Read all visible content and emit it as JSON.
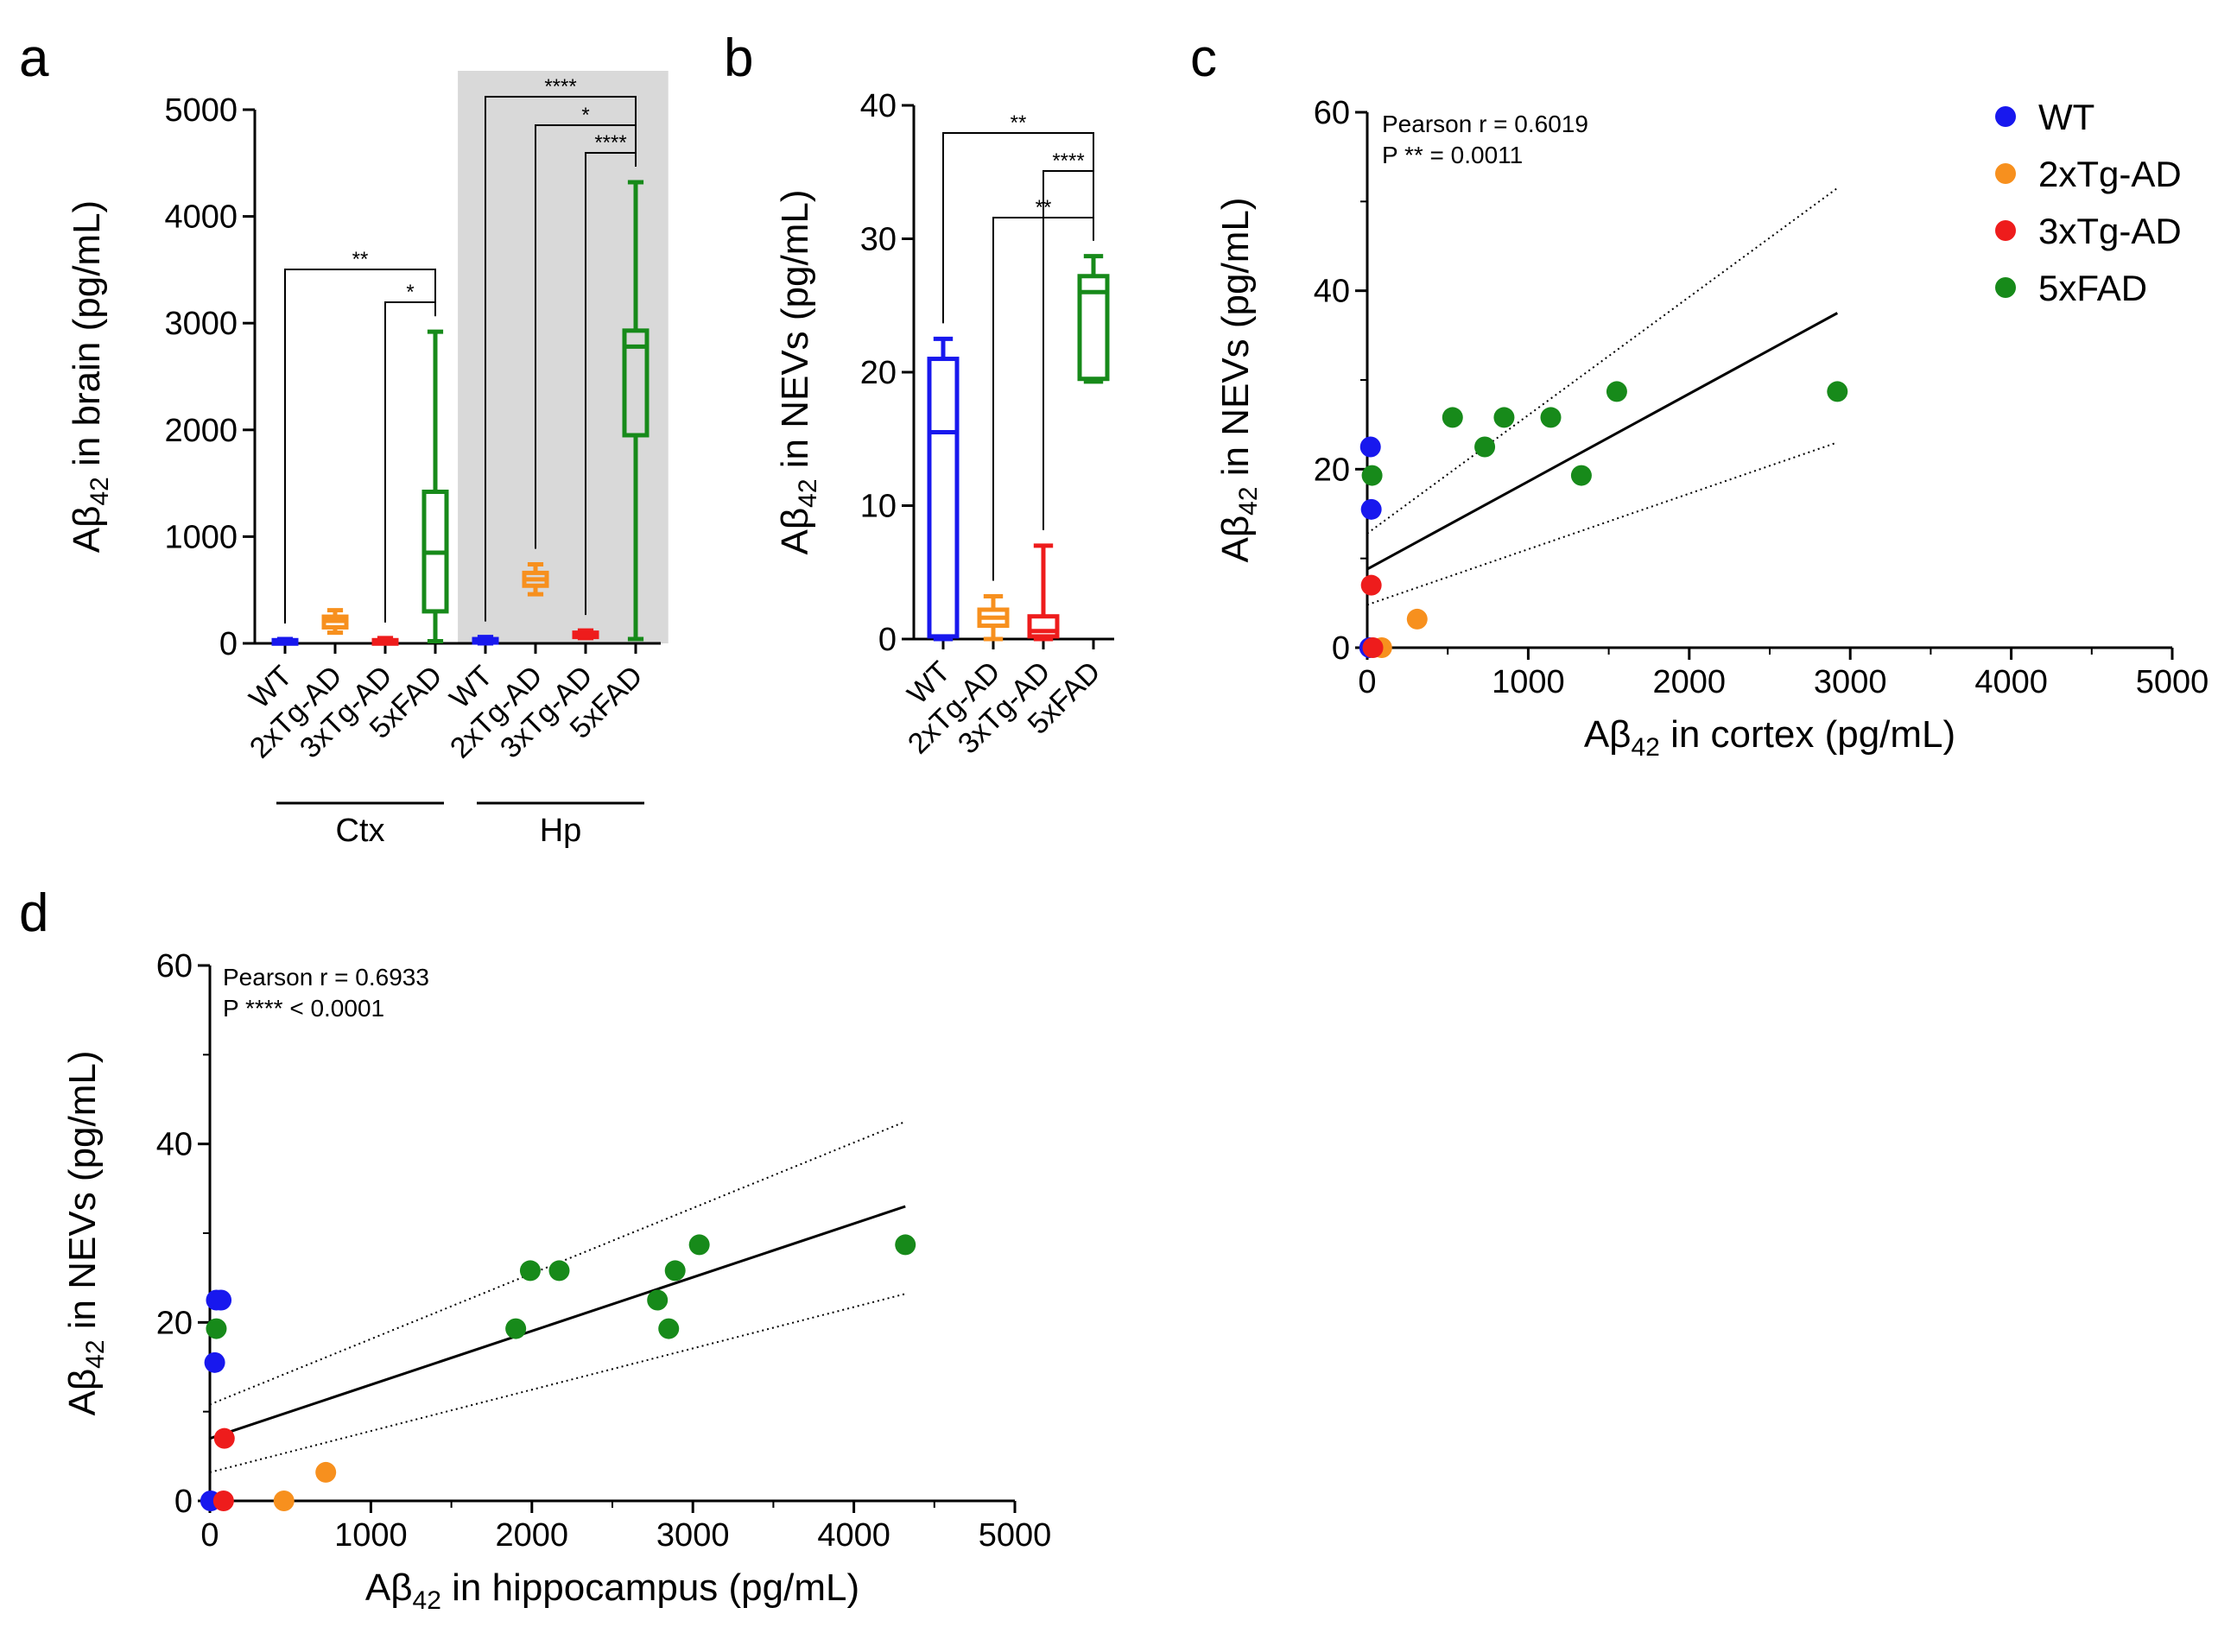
{
  "colors": {
    "WT": "#1818ee",
    "2xTg-AD": "#f7901e",
    "3xTg-AD": "#ee1c1c",
    "5xFAD": "#178a1a",
    "shade": "#d9d9d9"
  },
  "panel_labels": {
    "a": "a",
    "b": "b",
    "c": "c",
    "d": "d"
  },
  "legend": {
    "items": [
      "WT",
      "2xTg-AD",
      "3xTg-AD",
      "5xFAD"
    ]
  },
  "chart_data": [
    {
      "id": "a",
      "type": "box",
      "ylabel": "Aβ42 in brain (pg/mL)",
      "ylabel_parts": {
        "pre": "Aβ",
        "sub": "42",
        "post": " in brain (pg/mL)"
      },
      "ylim": [
        0,
        5000
      ],
      "yticks": [
        0,
        1000,
        2000,
        3000,
        4000,
        5000
      ],
      "categories": [
        "WT",
        "2xTg-AD",
        "3xTg-AD",
        "5xFAD",
        "WT",
        "2xTg-AD",
        "3xTg-AD",
        "5xFAD"
      ],
      "groups": [
        {
          "label": "Ctx",
          "range": [
            0,
            3
          ]
        },
        {
          "label": "Hp",
          "range": [
            4,
            7
          ],
          "shaded": true
        }
      ],
      "boxes": [
        {
          "group": "WT",
          "min": 0,
          "q1": 5,
          "median": 15,
          "q3": 30,
          "max": 40
        },
        {
          "group": "2xTg-AD",
          "min": 100,
          "q1": 150,
          "median": 210,
          "q3": 250,
          "max": 310
        },
        {
          "group": "3xTg-AD",
          "min": 0,
          "q1": 5,
          "median": 20,
          "q3": 30,
          "max": 50
        },
        {
          "group": "5xFAD",
          "min": 20,
          "q1": 300,
          "median": 850,
          "q3": 1420,
          "max": 2920
        },
        {
          "group": "WT",
          "min": 0,
          "q1": 10,
          "median": 20,
          "q3": 40,
          "max": 60
        },
        {
          "group": "2xTg-AD",
          "min": 460,
          "q1": 540,
          "median": 600,
          "q3": 660,
          "max": 740
        },
        {
          "group": "3xTg-AD",
          "min": 50,
          "q1": 60,
          "median": 80,
          "q3": 100,
          "max": 120
        },
        {
          "group": "5xFAD",
          "min": 40,
          "q1": 1950,
          "median": 2780,
          "q3": 2930,
          "max": 4320
        }
      ],
      "significance": [
        {
          "from": 0,
          "to": 3,
          "label": "**"
        },
        {
          "from": 2,
          "to": 3,
          "label": "*"
        },
        {
          "from": 4,
          "to": 7,
          "label": "****"
        },
        {
          "from": 5,
          "to": 7,
          "label": "*"
        },
        {
          "from": 6,
          "to": 7,
          "label": "****"
        }
      ]
    },
    {
      "id": "b",
      "type": "box",
      "ylabel": "Aβ42 in NEVs (pg/mL)",
      "ylabel_parts": {
        "pre": "Aβ",
        "sub": "42",
        "post": " in NEVs (pg/mL)"
      },
      "ylim": [
        0,
        40
      ],
      "yticks": [
        0,
        10,
        20,
        30,
        40
      ],
      "categories": [
        "WT",
        "2xTg-AD",
        "3xTg-AD",
        "5xFAD"
      ],
      "boxes": [
        {
          "group": "WT",
          "min": 0,
          "q1": 0.2,
          "median": 15.5,
          "q3": 21,
          "max": 22.5
        },
        {
          "group": "2xTg-AD",
          "min": 0,
          "q1": 1.0,
          "median": 1.6,
          "q3": 2.2,
          "max": 3.2
        },
        {
          "group": "3xTg-AD",
          "min": 0,
          "q1": 0.2,
          "median": 0.6,
          "q3": 1.7,
          "max": 7
        },
        {
          "group": "5xFAD",
          "min": 19.3,
          "q1": 19.5,
          "median": 26,
          "q3": 27.2,
          "max": 28.7
        }
      ],
      "significance": [
        {
          "from": 0,
          "to": 3,
          "label": "**"
        },
        {
          "from": 1,
          "to": 3,
          "label": "**"
        },
        {
          "from": 2,
          "to": 3,
          "label": "****"
        }
      ]
    },
    {
      "id": "c",
      "type": "scatter",
      "xlabel": "Aβ42 in cortex (pg/mL)",
      "xlabel_parts": {
        "pre": "Aβ",
        "sub": "42",
        "post": " in cortex (pg/mL)"
      },
      "ylabel": "Aβ42 in NEVs (pg/mL)",
      "ylabel_parts": {
        "pre": "Aβ",
        "sub": "42",
        "post": " in NEVs (pg/mL)"
      },
      "xlim": [
        0,
        5000
      ],
      "ylim": [
        0,
        60
      ],
      "xticks": [
        0,
        1000,
        2000,
        3000,
        4000,
        5000
      ],
      "yticks": [
        0,
        20,
        40,
        60
      ],
      "annotation": [
        "Pearson r = 0.6019",
        "P ** = 0.0011"
      ],
      "points": [
        {
          "group": "WT",
          "x": 20,
          "y": 22.5
        },
        {
          "group": "WT",
          "x": 25,
          "y": 15.5
        },
        {
          "group": "WT",
          "x": 15,
          "y": 0
        },
        {
          "group": "2xTg-AD",
          "x": 310,
          "y": 3.2
        },
        {
          "group": "2xTg-AD",
          "x": 90,
          "y": 0
        },
        {
          "group": "3xTg-AD",
          "x": 25,
          "y": 7
        },
        {
          "group": "3xTg-AD",
          "x": 35,
          "y": 0
        },
        {
          "group": "5xFAD",
          "x": 30,
          "y": 19.3
        },
        {
          "group": "5xFAD",
          "x": 530,
          "y": 25.8
        },
        {
          "group": "5xFAD",
          "x": 730,
          "y": 22.5
        },
        {
          "group": "5xFAD",
          "x": 850,
          "y": 25.8
        },
        {
          "group": "5xFAD",
          "x": 1140,
          "y": 25.8
        },
        {
          "group": "5xFAD",
          "x": 1330,
          "y": 19.3
        },
        {
          "group": "5xFAD",
          "x": 1550,
          "y": 28.7
        },
        {
          "group": "5xFAD",
          "x": 2920,
          "y": 28.7
        }
      ],
      "fit": {
        "x": [
          0,
          2920
        ],
        "y": [
          8.8,
          37.5
        ]
      },
      "ci_upper": {
        "x": [
          0,
          2920
        ],
        "y": [
          12.8,
          51.5
        ]
      },
      "ci_lower": {
        "x": [
          0,
          2920
        ],
        "y": [
          4.8,
          23.0
        ]
      }
    },
    {
      "id": "d",
      "type": "scatter",
      "xlabel": "Aβ42 in hippocampus (pg/mL)",
      "xlabel_parts": {
        "pre": "Aβ",
        "sub": "42",
        "post": " in hippocampus (pg/mL)"
      },
      "ylabel": "Aβ42 in NEVs (pg/mL)",
      "ylabel_parts": {
        "pre": "Aβ",
        "sub": "42",
        "post": " in NEVs (pg/mL)"
      },
      "xlim": [
        0,
        5000
      ],
      "ylim": [
        0,
        60
      ],
      "xticks": [
        0,
        1000,
        2000,
        3000,
        4000,
        5000
      ],
      "yticks": [
        0,
        20,
        40,
        60
      ],
      "annotation": [
        "Pearson r = 0.6933",
        "P **** < 0.0001"
      ],
      "points": [
        {
          "group": "WT",
          "x": 40,
          "y": 22.5
        },
        {
          "group": "WT",
          "x": 70,
          "y": 22.5
        },
        {
          "group": "WT",
          "x": 30,
          "y": 15.5
        },
        {
          "group": "WT",
          "x": 5,
          "y": 0
        },
        {
          "group": "2xTg-AD",
          "x": 720,
          "y": 3.2
        },
        {
          "group": "2xTg-AD",
          "x": 460,
          "y": 0
        },
        {
          "group": "3xTg-AD",
          "x": 90,
          "y": 7
        },
        {
          "group": "3xTg-AD",
          "x": 85,
          "y": 0
        },
        {
          "group": "5xFAD",
          "x": 40,
          "y": 19.3
        },
        {
          "group": "5xFAD",
          "x": 1900,
          "y": 19.3
        },
        {
          "group": "5xFAD",
          "x": 1990,
          "y": 25.8
        },
        {
          "group": "5xFAD",
          "x": 2170,
          "y": 25.8
        },
        {
          "group": "5xFAD",
          "x": 2780,
          "y": 22.5
        },
        {
          "group": "5xFAD",
          "x": 2850,
          "y": 19.3
        },
        {
          "group": "5xFAD",
          "x": 2890,
          "y": 25.8
        },
        {
          "group": "5xFAD",
          "x": 3040,
          "y": 28.7
        },
        {
          "group": "5xFAD",
          "x": 4320,
          "y": 28.7
        }
      ],
      "fit": {
        "x": [
          0,
          4320
        ],
        "y": [
          7.0,
          33.0
        ]
      },
      "ci_upper": {
        "x": [
          0,
          4320
        ],
        "y": [
          10.8,
          42.5
        ]
      },
      "ci_lower": {
        "x": [
          0,
          4320
        ],
        "y": [
          3.2,
          23.2
        ]
      }
    }
  ]
}
